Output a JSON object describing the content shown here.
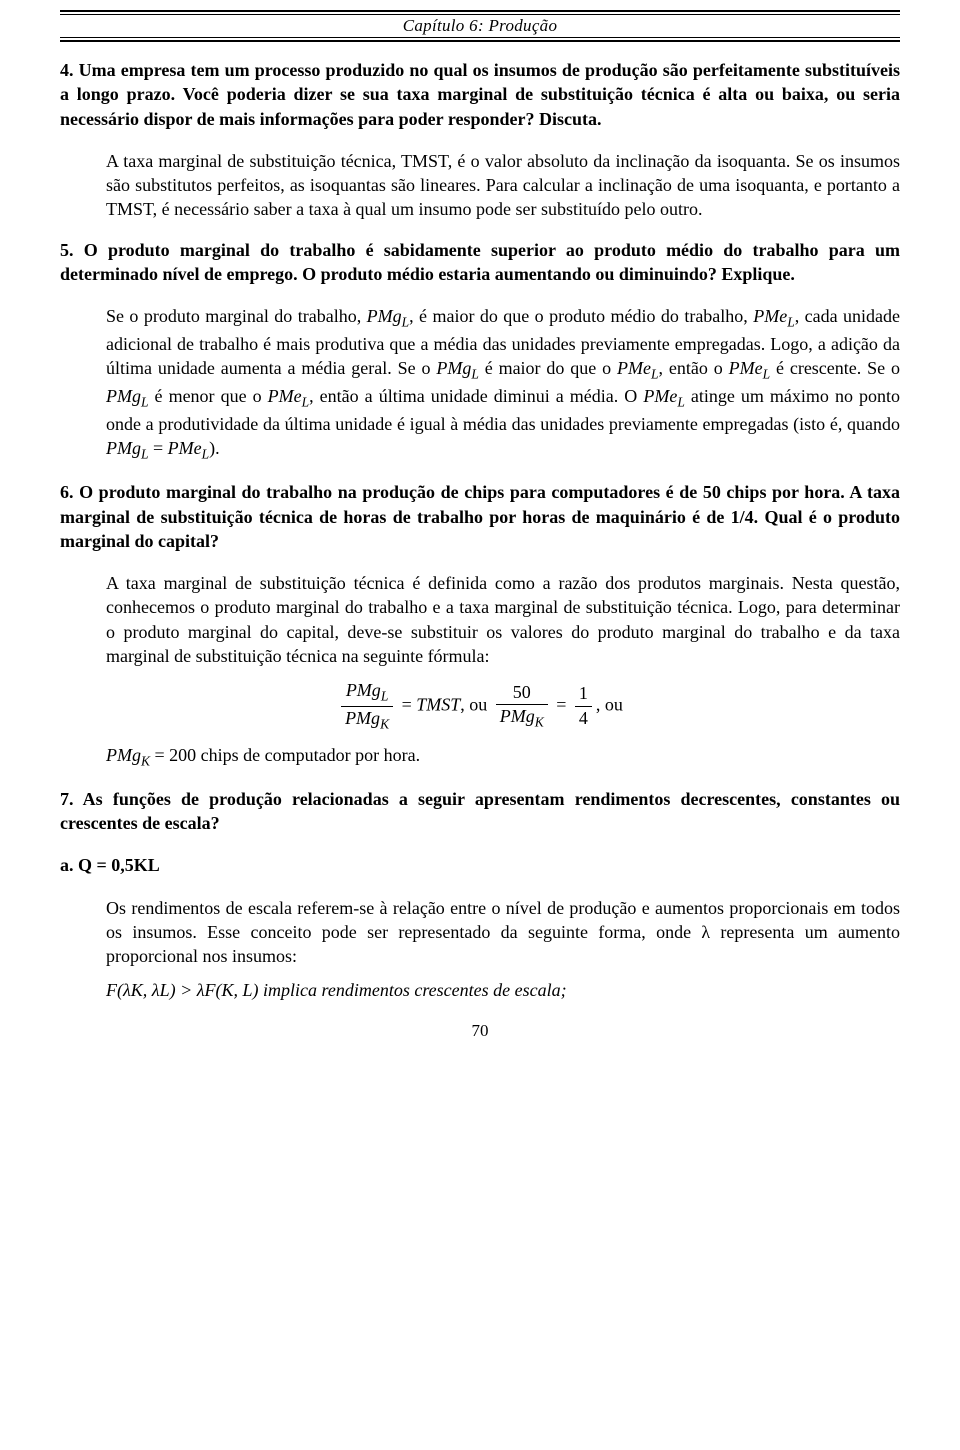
{
  "header": {
    "chapter": "Capítulo 6: Produção"
  },
  "q4": {
    "text": "4.   Uma empresa tem um processo produzido no qual os insumos de produção são perfeitamente substituíveis a longo prazo. Você poderia dizer se sua taxa marginal de substituição técnica é alta ou baixa, ou seria necessário dispor de mais informações para poder responder? Discuta.",
    "answer_p1": "A taxa marginal de substituição técnica, TMST, é o valor absoluto da inclinação da isoquanta.  Se os insumos são substitutos perfeitos, as isoquantas são lineares.  Para calcular a inclinação de uma isoquanta, e portanto a TMST, é necessário saber a taxa à qual um insumo pode ser substituído pelo outro."
  },
  "q5": {
    "text": "5.   O produto marginal do trabalho é sabidamente superior ao produto médio do trabalho para um determinado nível de emprego. O produto médio estaria aumentando ou diminuindo? Explique.",
    "answer": {
      "pre1": "Se o produto marginal do trabalho, ",
      "pmgl": "PMg",
      "pmgl_sub": "L",
      "mid1": ", é maior do que o produto médio do trabalho, ",
      "pmel": "PMe",
      "pmel_sub": "L",
      "mid2": ", cada unidade adicional de trabalho é mais produtiva que a média das unidades previamente empregadas. Logo, a adição da última unidade aumenta a média geral.  Se o ",
      "mid3": " é maior do que o ",
      "mid4": ", então o ",
      "mid5": " é crescente.  Se o ",
      "mid6": " é menor que o ",
      "mid7": ", então a última unidade diminui a média.  O ",
      "mid8": " atinge um máximo no ponto onde a produtividade da última unidade é igual à média das unidades previamente empregadas (isto é, quando ",
      "eq": " = ",
      "end": ")."
    }
  },
  "q6": {
    "text": "6.    O produto marginal do trabalho na produção de chips para computadores é de 50 chips por hora. A taxa marginal de substituição técnica de horas de trabalho por horas de maquinário é de 1/4. Qual é o produto marginal do capital?",
    "answer_p1": "A taxa marginal de substituição técnica é definida como a razão dos produtos marginais. Nesta questão, conhecemos o produto marginal do trabalho e a taxa marginal de substituição técnica. Logo, para determinar o produto marginal do capital, deve-se substituir os valores do produto marginal do trabalho e da taxa marginal de substituição técnica na seguinte fórmula:",
    "formula": {
      "num1": "PMg",
      "num1_sub": "L",
      "den1": "PMg",
      "den1_sub": "K",
      "eq": "=",
      "tmst": "TMST",
      "comma_ou": ", ou ",
      "fifty": "50",
      "den2": "PMg",
      "den2_sub": "K",
      "one": "1",
      "four": "4",
      "tail": ",  ou"
    },
    "answer_p2_pre": "PMg",
    "answer_p2_sub": "K",
    "answer_p2_rest": " = 200 chips de computador por hora."
  },
  "q7": {
    "text": "7.  As funções de produção relacionadas a seguir apresentam rendimentos decrescentes, constantes ou crescentes de escala?",
    "a_label": "a.        Q = 0,5KL",
    "a_answer": "Os rendimentos de escala referem-se à relação entre o nível de produção e aumentos proporcionais em todos os insumos. Esse conceito pode ser representado da seguinte forma, onde λ representa um aumento proporcional nos insumos:",
    "a_formula": "F(λK, λL) > λF(K, L) implica rendimentos crescentes de escala;"
  },
  "page_number": "70"
}
